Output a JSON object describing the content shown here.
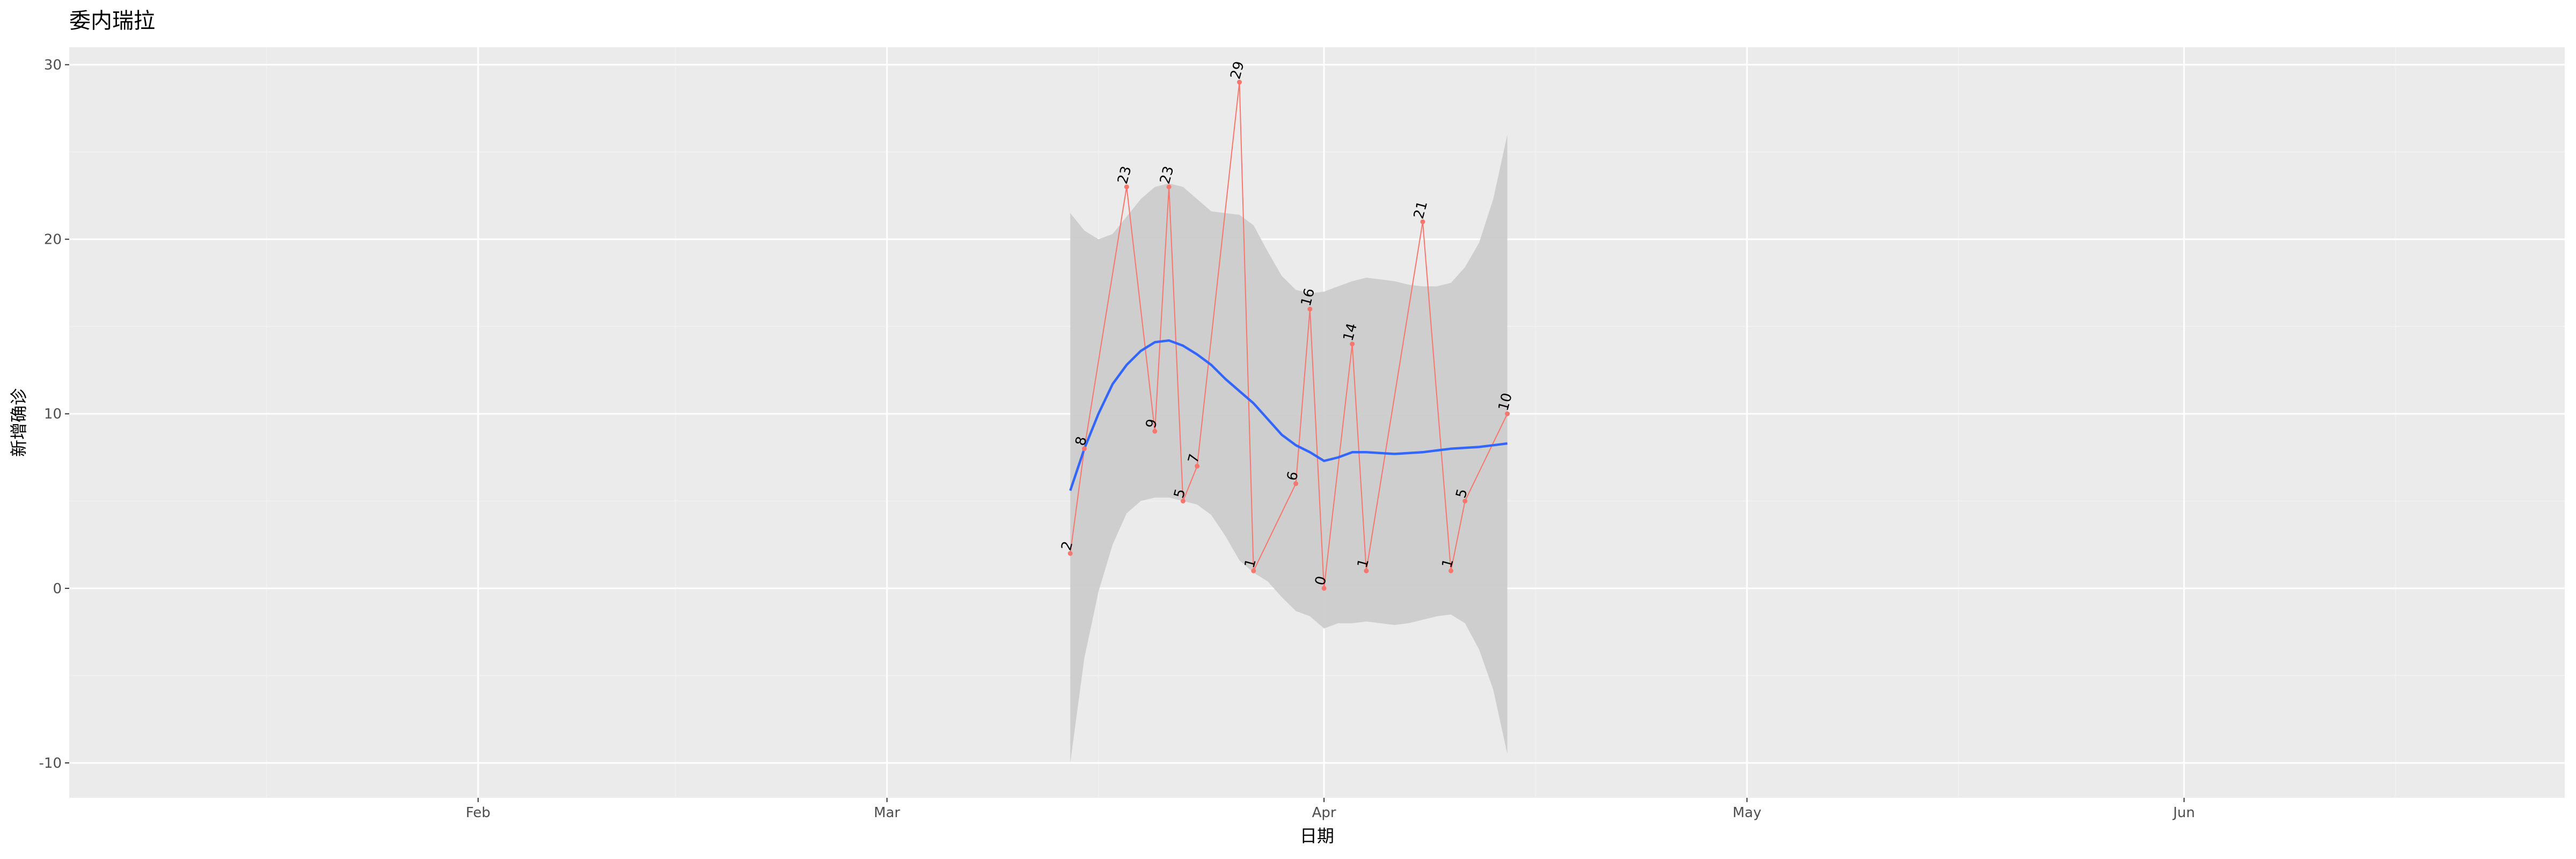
{
  "chart_data": {
    "type": "line",
    "title": "委内瑞拉",
    "xlabel": "日期",
    "ylabel": "新增确诊",
    "x_axis": {
      "type": "date",
      "range": [
        "2020-01-03",
        "2020-06-28"
      ],
      "major_ticks": [
        {
          "date": "2020-02-01",
          "label": "Feb"
        },
        {
          "date": "2020-03-01",
          "label": "Mar"
        },
        {
          "date": "2020-04-01",
          "label": "Apr"
        },
        {
          "date": "2020-05-01",
          "label": "May"
        },
        {
          "date": "2020-06-01",
          "label": "Jun"
        }
      ],
      "minor_ticks": [
        "2020-01-17",
        "2020-02-15",
        "2020-03-16",
        "2020-04-16",
        "2020-05-16",
        "2020-06-16"
      ]
    },
    "y_axis": {
      "range": [
        -12,
        31
      ],
      "ticks": [
        -10,
        0,
        10,
        20,
        30
      ],
      "tick_labels": [
        "-10",
        "0",
        "10",
        "20",
        "30"
      ],
      "minor_ticks": [
        -5,
        5,
        15,
        25
      ]
    },
    "grid": true,
    "series": [
      {
        "type": "line+points",
        "color": "#f8766d",
        "points": [
          {
            "x": "2020-03-14",
            "y": 2
          },
          {
            "x": "2020-03-15",
            "y": 8
          },
          {
            "x": "2020-03-18",
            "y": 23
          },
          {
            "x": "2020-03-20",
            "y": 9
          },
          {
            "x": "2020-03-21",
            "y": 23
          },
          {
            "x": "2020-03-22",
            "y": 5
          },
          {
            "x": "2020-03-23",
            "y": 7
          },
          {
            "x": "2020-03-26",
            "y": 29
          },
          {
            "x": "2020-03-27",
            "y": 1
          },
          {
            "x": "2020-03-30",
            "y": 6
          },
          {
            "x": "2020-03-31",
            "y": 16
          },
          {
            "x": "2020-04-01",
            "y": 0
          },
          {
            "x": "2020-04-03",
            "y": 14
          },
          {
            "x": "2020-04-04",
            "y": 1
          },
          {
            "x": "2020-04-08",
            "y": 21
          },
          {
            "x": "2020-04-10",
            "y": 1
          },
          {
            "x": "2020-04-11",
            "y": 5
          },
          {
            "x": "2020-04-14",
            "y": 10
          }
        ]
      },
      {
        "type": "smooth",
        "color": "#3366ff",
        "band_color": "#cccccc",
        "points": [
          {
            "x": "2020-03-14",
            "y": 5.6,
            "lower": -10.0,
            "upper": 21.5
          },
          {
            "x": "2020-03-15",
            "y": 8.0,
            "lower": -4.0,
            "upper": 20.5
          },
          {
            "x": "2020-03-16",
            "y": 10.0,
            "lower": -0.2,
            "upper": 20.0
          },
          {
            "x": "2020-03-17",
            "y": 11.7,
            "lower": 2.5,
            "upper": 20.3
          },
          {
            "x": "2020-03-18",
            "y": 12.8,
            "lower": 4.3,
            "upper": 21.3
          },
          {
            "x": "2020-03-19",
            "y": 13.6,
            "lower": 5.0,
            "upper": 22.3
          },
          {
            "x": "2020-03-20",
            "y": 14.1,
            "lower": 5.2,
            "upper": 23.0
          },
          {
            "x": "2020-03-21",
            "y": 14.2,
            "lower": 5.2,
            "upper": 23.2
          },
          {
            "x": "2020-03-22",
            "y": 13.9,
            "lower": 5.0,
            "upper": 23.0
          },
          {
            "x": "2020-03-23",
            "y": 13.4,
            "lower": 4.8,
            "upper": 22.3
          },
          {
            "x": "2020-03-24",
            "y": 12.8,
            "lower": 4.2,
            "upper": 21.6
          },
          {
            "x": "2020-03-25",
            "y": 12.0,
            "lower": 3.0,
            "upper": 21.5
          },
          {
            "x": "2020-03-26",
            "y": 11.3,
            "lower": 1.6,
            "upper": 21.4
          },
          {
            "x": "2020-03-27",
            "y": 10.6,
            "lower": 0.9,
            "upper": 20.8
          },
          {
            "x": "2020-03-28",
            "y": 9.7,
            "lower": 0.4,
            "upper": 19.3
          },
          {
            "x": "2020-03-29",
            "y": 8.8,
            "lower": -0.5,
            "upper": 17.9
          },
          {
            "x": "2020-03-30",
            "y": 8.2,
            "lower": -1.3,
            "upper": 17.1
          },
          {
            "x": "2020-03-31",
            "y": 7.8,
            "lower": -1.6,
            "upper": 16.9
          },
          {
            "x": "2020-04-01",
            "y": 7.3,
            "lower": -2.3,
            "upper": 17.0
          },
          {
            "x": "2020-04-02",
            "y": 7.5,
            "lower": -2.0,
            "upper": 17.3
          },
          {
            "x": "2020-04-03",
            "y": 7.8,
            "lower": -2.0,
            "upper": 17.6
          },
          {
            "x": "2020-04-04",
            "y": 7.8,
            "lower": -1.9,
            "upper": 17.8
          },
          {
            "x": "2020-04-05",
            "y": 7.75,
            "lower": -2.0,
            "upper": 17.7
          },
          {
            "x": "2020-04-06",
            "y": 7.7,
            "lower": -2.1,
            "upper": 17.6
          },
          {
            "x": "2020-04-07",
            "y": 7.75,
            "lower": -2.0,
            "upper": 17.4
          },
          {
            "x": "2020-04-08",
            "y": 7.8,
            "lower": -1.8,
            "upper": 17.3
          },
          {
            "x": "2020-04-09",
            "y": 7.9,
            "lower": -1.6,
            "upper": 17.3
          },
          {
            "x": "2020-04-10",
            "y": 8.0,
            "lower": -1.5,
            "upper": 17.5
          },
          {
            "x": "2020-04-11",
            "y": 8.05,
            "lower": -2.0,
            "upper": 18.4
          },
          {
            "x": "2020-04-12",
            "y": 8.1,
            "lower": -3.5,
            "upper": 19.8
          },
          {
            "x": "2020-04-13",
            "y": 8.2,
            "lower": -5.8,
            "upper": 22.3
          },
          {
            "x": "2020-04-14",
            "y": 8.3,
            "lower": -9.5,
            "upper": 26.0
          }
        ]
      }
    ]
  },
  "colors": {
    "panel_background": "#ebebeb",
    "grid_major": "#ffffff",
    "grid_minor": "#f2f2f2",
    "points_line": "#f8766d",
    "smooth_line": "#3366ff",
    "confidence_band": "#cccccc"
  }
}
